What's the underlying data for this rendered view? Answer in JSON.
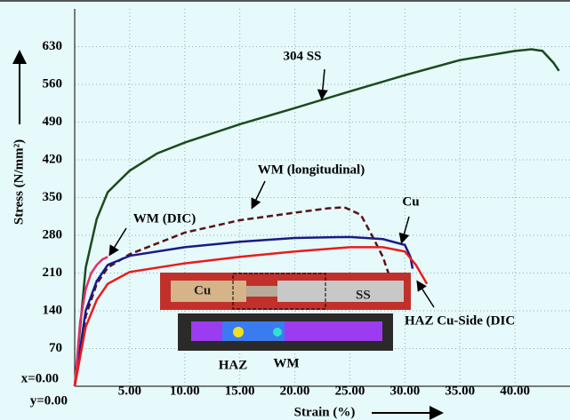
{
  "chart_data": {
    "type": "line",
    "xlabel": "Strain (%)",
    "ylabel": "Stress (N/mm²)",
    "xlim": [
      0,
      45
    ],
    "ylim": [
      0,
      700
    ],
    "xticks": [
      {
        "value": 0,
        "label": "y=0.00"
      },
      {
        "value": 5,
        "label": "5.00"
      },
      {
        "value": 10,
        "label": "10.00"
      },
      {
        "value": 15,
        "label": "15.00"
      },
      {
        "value": 20,
        "label": "20.00"
      },
      {
        "value": 25,
        "label": "25.00"
      },
      {
        "value": 30,
        "label": "30.00"
      },
      {
        "value": 35,
        "label": "35.00"
      },
      {
        "value": 40,
        "label": "40.00"
      }
    ],
    "yticks": [
      {
        "value": 0,
        "label": "x=0.00"
      },
      70,
      140,
      210,
      280,
      350,
      420,
      490,
      560,
      630
    ],
    "grid": true,
    "series": [
      {
        "name": "304 SS",
        "color": "#1b4a1b",
        "dashed": false,
        "x": [
          0,
          1,
          2,
          3,
          5,
          7.5,
          10,
          15,
          20,
          25,
          30,
          35,
          40,
          41.5,
          42.5,
          43.5,
          44
        ],
        "values": [
          0,
          220,
          310,
          360,
          400,
          432,
          452,
          486,
          516,
          547,
          577,
          605,
          622,
          625,
          622,
          600,
          585
        ]
      },
      {
        "name": "WM (longitudinal)",
        "color": "#5a1212",
        "dashed": true,
        "x": [
          0,
          1,
          2,
          3,
          5,
          10,
          15,
          20,
          23,
          24.5,
          26,
          27,
          28,
          28.5
        ],
        "values": [
          0,
          130,
          190,
          220,
          245,
          285,
          308,
          322,
          330,
          332,
          318,
          280,
          240,
          210
        ]
      },
      {
        "name": "Cu",
        "color": "#1a1a85",
        "dashed": false,
        "x": [
          0,
          1,
          2,
          3,
          5,
          10,
          15,
          20,
          25,
          28,
          30,
          30.5,
          30.7
        ],
        "values": [
          0,
          140,
          195,
          225,
          242,
          258,
          268,
          275,
          277,
          273,
          262,
          240,
          218
        ]
      },
      {
        "name": "WM (DIC)",
        "color": "#e0306a",
        "dashed": false,
        "x": [
          0,
          0.5,
          1,
          1.5,
          2,
          2.5,
          3
        ],
        "values": [
          0,
          120,
          180,
          210,
          225,
          235,
          240
        ]
      },
      {
        "name": "HAZ Cu-Side (DIC",
        "color": "#e81c1c",
        "dashed": false,
        "x": [
          0,
          1,
          2,
          3,
          5,
          10,
          15,
          20,
          25,
          28,
          30,
          31,
          32
        ],
        "values": [
          0,
          110,
          160,
          190,
          212,
          228,
          240,
          250,
          258,
          258,
          250,
          225,
          190
        ]
      }
    ],
    "inset_labels": [
      "Cu",
      "SS",
      "HAZ",
      "WM"
    ]
  }
}
